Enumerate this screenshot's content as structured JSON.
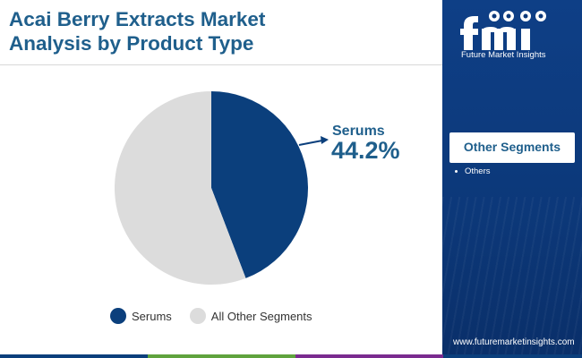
{
  "title": {
    "line1": "Acai Berry Extracts Market",
    "line2": "Analysis by Product Type"
  },
  "chart_data": {
    "type": "pie",
    "title": "Acai Berry Extracts Market Analysis by Product Type",
    "slices": [
      {
        "label": "Serums",
        "value": 44.2,
        "color": "#0b3f7c"
      },
      {
        "label": "All Other Segments",
        "value": 55.8,
        "color": "#dcdcdc"
      }
    ],
    "callout": {
      "label": "Serums",
      "value": "44.2%"
    },
    "legend_position": "bottom"
  },
  "legend": {
    "items": [
      {
        "label": "Serums",
        "color": "#0b3f7c"
      },
      {
        "label": "All Other Segments",
        "color": "#dcdcdc"
      }
    ]
  },
  "sidebar": {
    "logo_name": "fmi-logo",
    "logo_caption": "Future Market Insights",
    "segments_title": "Other Segments",
    "segments": [
      "Others"
    ],
    "website": "www.futuremarketinsights.com"
  },
  "colors": {
    "brand_blue": "#1f5f8c",
    "sidebar_bg": "#0c3879",
    "bottom_bar": [
      "#0b3f7c",
      "#5fa33d",
      "#7a2b8f",
      "#0b3f7c"
    ]
  }
}
